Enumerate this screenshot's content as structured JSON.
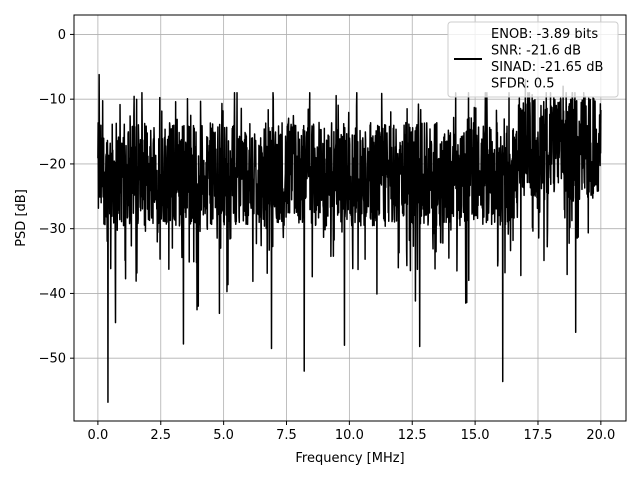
{
  "chart_data": {
    "type": "line",
    "title": "",
    "xlabel": "Frequency [MHz]",
    "ylabel": "PSD [dB]",
    "xlim": [
      -0.95,
      21.0
    ],
    "ylim": [
      -59.7,
      3.0
    ],
    "xticks": [
      0.0,
      2.5,
      5.0,
      7.5,
      10.0,
      12.5,
      15.0,
      17.5,
      20.0
    ],
    "xtick_labels": [
      "0.0",
      "2.5",
      "5.0",
      "7.5",
      "10.0",
      "12.5",
      "15.0",
      "17.5",
      "20.0"
    ],
    "yticks": [
      0,
      -10,
      -20,
      -30,
      -40,
      -50
    ],
    "ytick_labels": [
      "0",
      "−10",
      "−20",
      "−30",
      "−40",
      "−50"
    ],
    "grid": true,
    "legend_position": "top-right",
    "series": [
      {
        "legend_lines": [
          "ENOB: -3.89 bits",
          "SNR: -21.6 dB",
          "SINAD: -21.65 dB",
          "SFDR: 0.5"
        ],
        "color": "#000000",
        "x_range": [
          0.0,
          20.0
        ],
        "num_points": 2000,
        "noise_floor_db": -21.6,
        "annotated_points": [
          {
            "x": 0.05,
            "y": -6.2
          },
          {
            "x": 0.4,
            "y": -56.8
          },
          {
            "x": 0.7,
            "y": -44.5
          },
          {
            "x": 3.4,
            "y": -47.8
          },
          {
            "x": 6.9,
            "y": -48.5
          },
          {
            "x": 8.2,
            "y": -52.0
          },
          {
            "x": 9.8,
            "y": -48.0
          },
          {
            "x": 12.8,
            "y": -48.2
          },
          {
            "x": 16.1,
            "y": -53.6
          },
          {
            "x": 19.0,
            "y": -46.0
          },
          {
            "x": 17.0,
            "y": -7.0
          },
          {
            "x": 18.5,
            "y": -8.0
          }
        ]
      }
    ]
  }
}
